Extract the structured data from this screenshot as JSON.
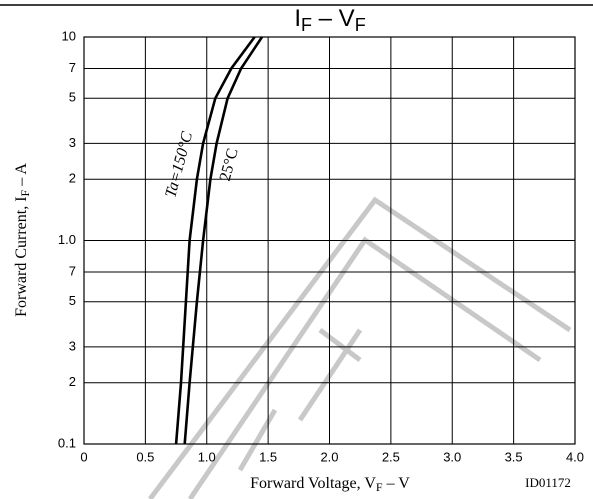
{
  "chart_data": {
    "type": "line",
    "title": [
      "I",
      "F",
      " – V",
      "F"
    ],
    "xlabel": [
      "Forward Voltage,  V",
      "F",
      " – V"
    ],
    "ylabel": [
      "Forward Current,  I",
      "F",
      " – A"
    ],
    "note": "ID01172",
    "xlim": [
      0,
      4
    ],
    "xticks": [
      0,
      0.5,
      {
        "value": 1,
        "label": "1.0"
      },
      1.5,
      {
        "value": 2,
        "label": "2.0"
      },
      2.5,
      {
        "value": 3,
        "label": "3.0"
      },
      3.5,
      {
        "value": 4,
        "label": "4.0"
      }
    ],
    "ylim": [
      0.1,
      10
    ],
    "yticks": [
      0.1,
      {
        "value": 0.2,
        "label": "2"
      },
      {
        "value": 0.3,
        "label": "3"
      },
      {
        "value": 0.5,
        "label": "5"
      },
      {
        "value": 0.7,
        "label": "7"
      },
      {
        "value": 1,
        "label": "1.0"
      },
      2,
      3,
      5,
      7,
      10
    ],
    "log_y": true,
    "grid": true,
    "series": [
      {
        "name": "Ta=150°C",
        "color": "#000000",
        "x": [
          0.75,
          0.79,
          0.83,
          0.86,
          0.92,
          0.97,
          1.07,
          1.2,
          1.39
        ],
        "values": [
          0.1,
          0.2,
          0.5,
          1,
          2,
          3,
          5,
          7,
          10
        ]
      },
      {
        "name": "25°C",
        "color": "#000000",
        "x": [
          0.82,
          0.86,
          0.92,
          0.97,
          1.03,
          1.08,
          1.17,
          1.28,
          1.45
        ],
        "values": [
          0.1,
          0.2,
          0.5,
          1,
          2,
          3,
          5,
          7,
          10
        ]
      }
    ]
  }
}
